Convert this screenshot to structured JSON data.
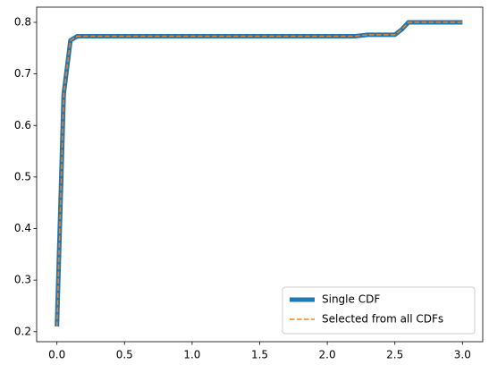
{
  "chart_data": {
    "type": "line",
    "x": [
      0,
      0.05,
      0.1,
      0.15,
      2.2,
      2.3,
      2.5,
      2.55,
      2.6,
      3.0
    ],
    "series": [
      {
        "name": "Single CDF",
        "color": "#1f77b4",
        "values": [
          0.21,
          0.66,
          0.765,
          0.773,
          0.773,
          0.776,
          0.776,
          0.786,
          0.8,
          0.8
        ]
      },
      {
        "name": "Selected from all CDFs",
        "color": "#ff7f0e",
        "values": [
          0.21,
          0.66,
          0.765,
          0.773,
          0.773,
          0.776,
          0.776,
          0.786,
          0.8,
          0.8
        ]
      }
    ],
    "xlim": [
      -0.15,
      3.15
    ],
    "ylim": [
      0.1805,
      0.8295
    ],
    "xticks": [
      {
        "value": 0,
        "label": "0.0"
      },
      0.5,
      {
        "value": 1,
        "label": "1.0"
      },
      1.5,
      {
        "value": 2,
        "label": "2.0"
      },
      2.5,
      {
        "value": 3,
        "label": "3.0"
      }
    ],
    "yticks": [
      0.2,
      0.3,
      0.4,
      0.5,
      0.6,
      0.7,
      0.8
    ],
    "legend": "lower right"
  }
}
